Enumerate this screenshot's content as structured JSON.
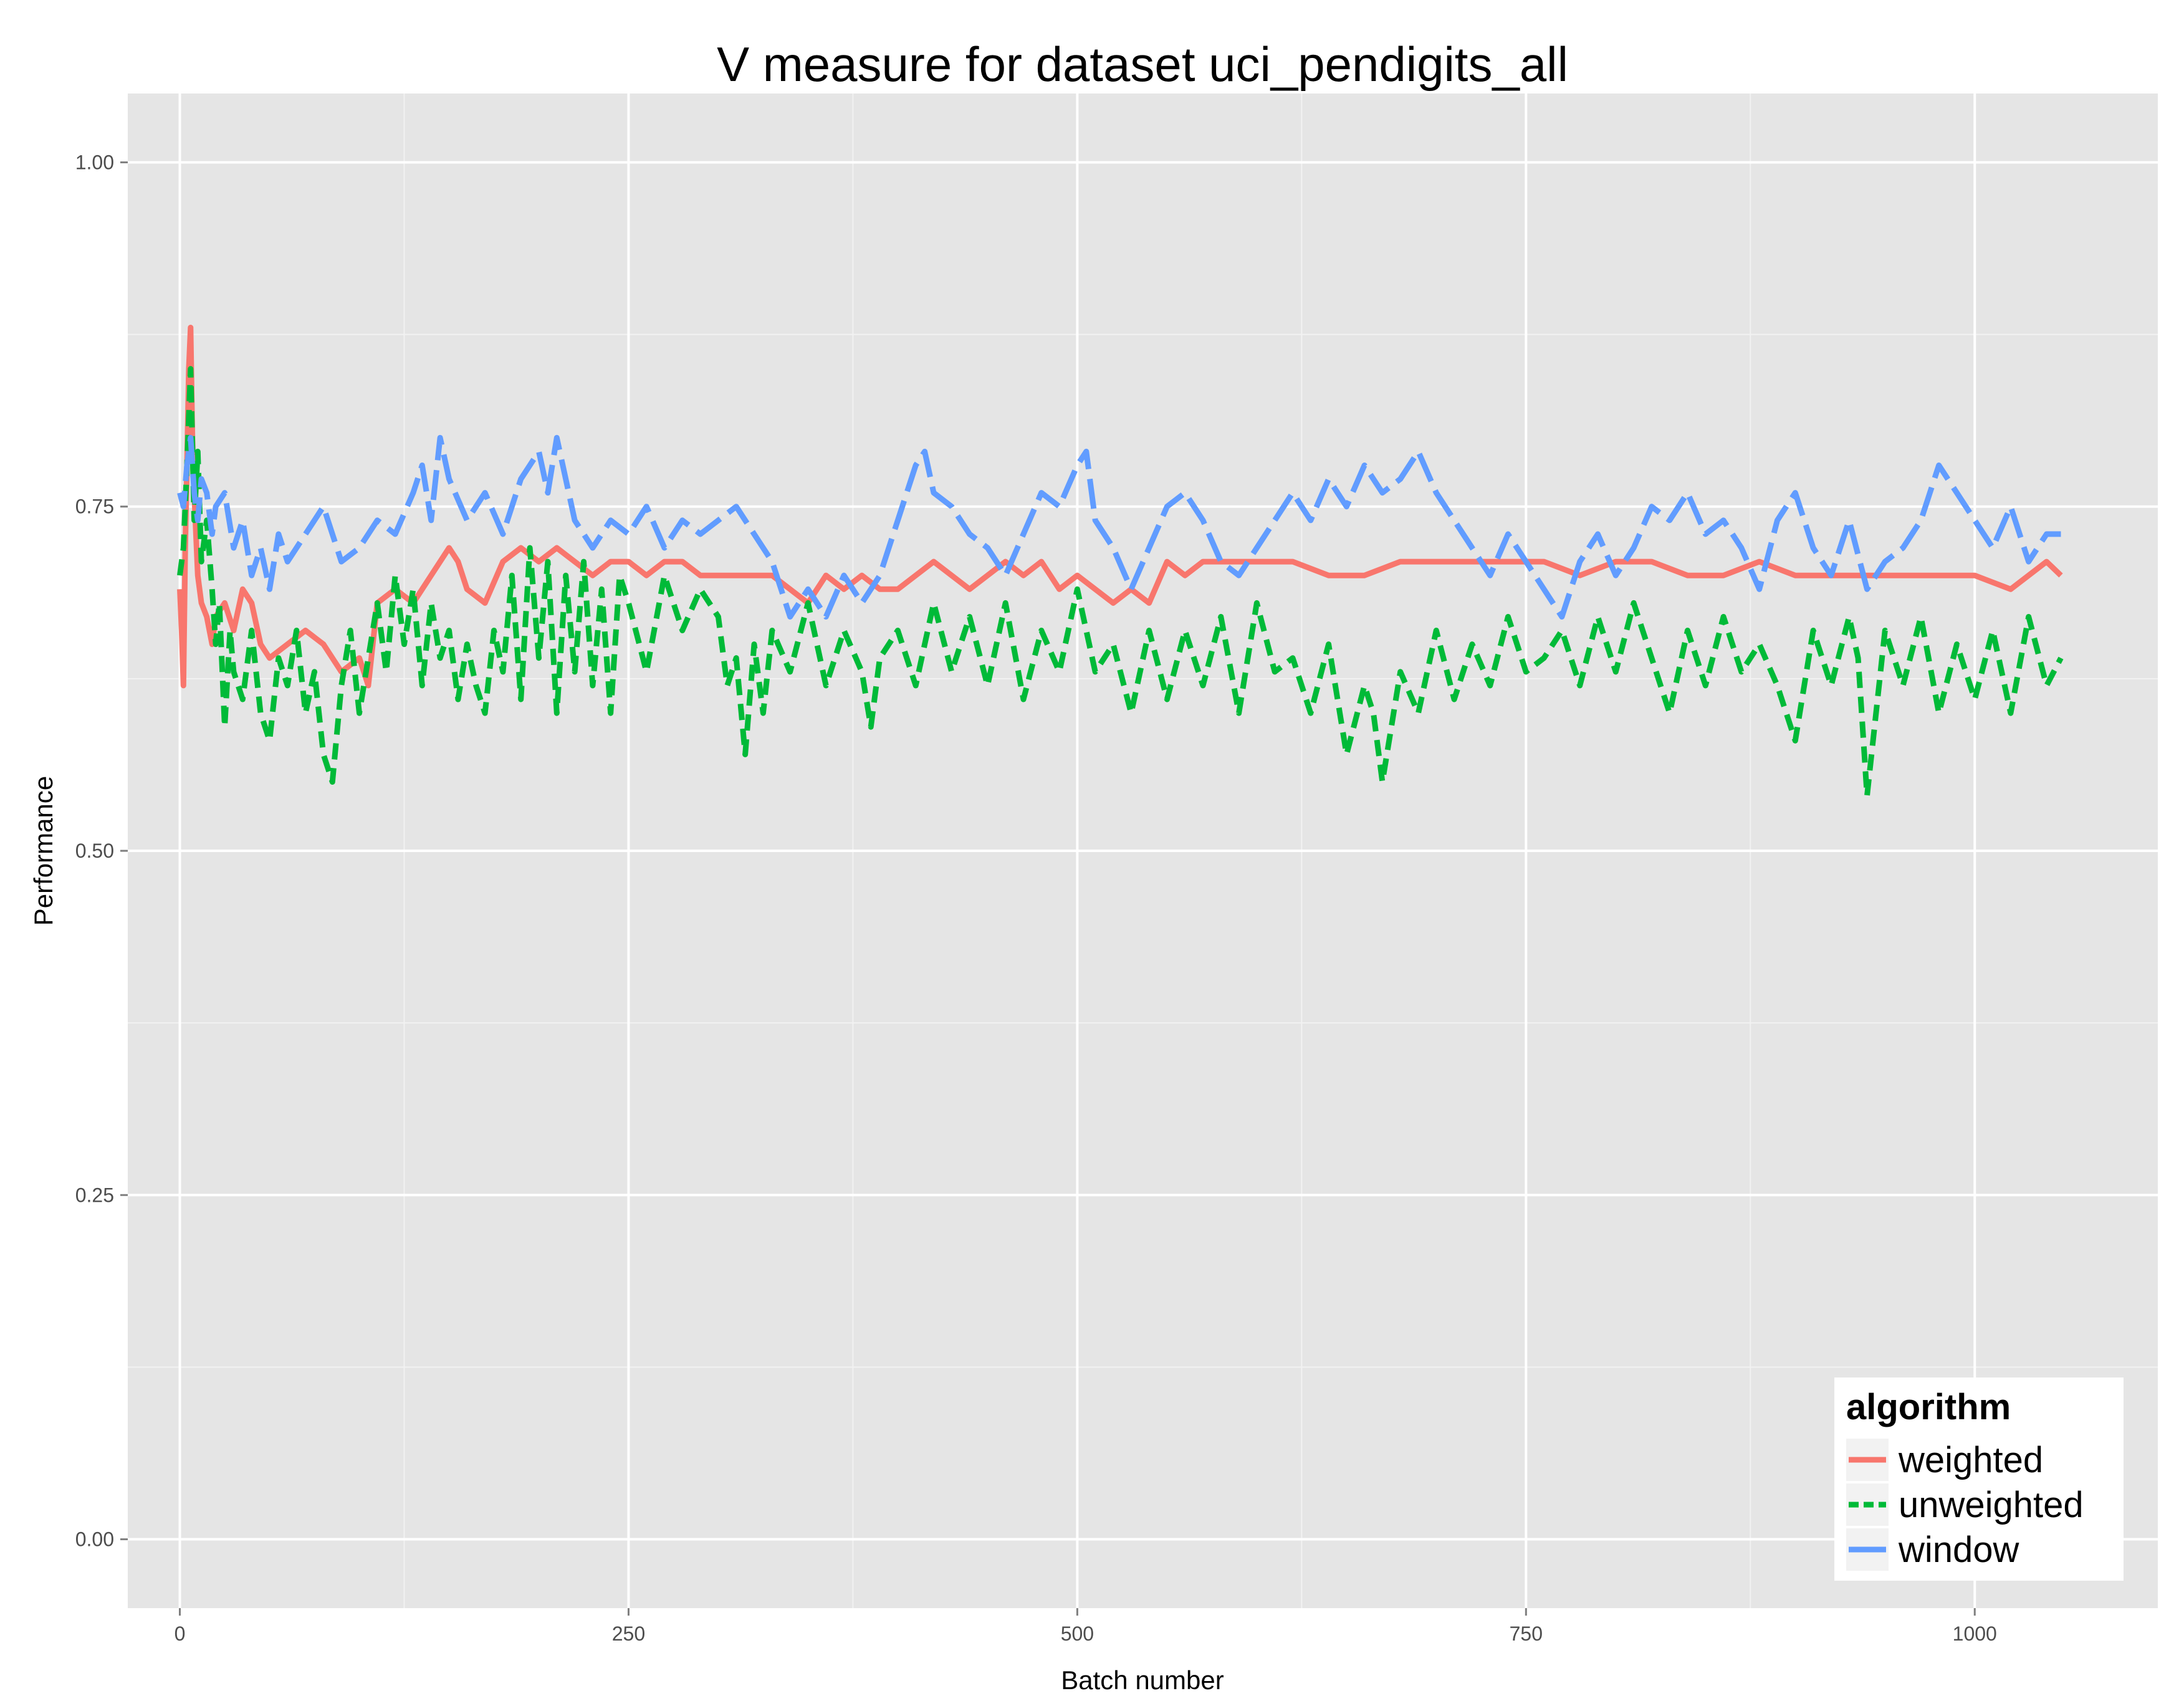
{
  "chart_data": {
    "type": "line",
    "title": "V measure for dataset uci_pendigits_all",
    "xlabel": "Batch number",
    "ylabel": "Performance",
    "xlim": [
      -29,
      1102
    ],
    "ylim": [
      -0.05,
      1.05
    ],
    "x_ticks": [
      0,
      250,
      500,
      750,
      1000
    ],
    "x_tick_labels": [
      "0",
      "250",
      "500",
      "750",
      "1000"
    ],
    "y_ticks": [
      0,
      0.25,
      0.5,
      0.75,
      1
    ],
    "y_tick_labels": [
      "0.00",
      "0.25",
      "0.50",
      "0.75",
      "1.00"
    ],
    "grid": true,
    "legend": {
      "title": "algorithm",
      "position": "bottom-right",
      "entries": [
        "weighted",
        "unweighted",
        "window"
      ]
    },
    "colors": {
      "weighted": "#F8766D",
      "unweighted": "#00BA38",
      "window": "#619CFF",
      "panel": "#E5E5E5",
      "grid": "#FFFFFF"
    },
    "series": [
      {
        "name": "weighted",
        "dash": "solid",
        "x": [
          0,
          1,
          2,
          3,
          4,
          5,
          6,
          7,
          8,
          9,
          10,
          12,
          15,
          18,
          20,
          25,
          30,
          35,
          40,
          45,
          50,
          60,
          70,
          80,
          90,
          100,
          105,
          110,
          120,
          130,
          140,
          150,
          155,
          160,
          170,
          180,
          190,
          200,
          210,
          220,
          230,
          240,
          250,
          260,
          270,
          280,
          290,
          300,
          310,
          320,
          330,
          340,
          350,
          360,
          370,
          380,
          390,
          400,
          410,
          420,
          430,
          440,
          450,
          460,
          470,
          480,
          490,
          500,
          510,
          520,
          530,
          540,
          550,
          560,
          570,
          580,
          590,
          600,
          620,
          640,
          660,
          680,
          700,
          720,
          740,
          760,
          780,
          800,
          820,
          840,
          860,
          880,
          900,
          920,
          940,
          960,
          980,
          1000,
          1020,
          1030,
          1040,
          1048
        ],
        "values": [
          0.69,
          0.66,
          0.62,
          0.72,
          0.78,
          0.85,
          0.88,
          0.8,
          0.76,
          0.73,
          0.7,
          0.68,
          0.67,
          0.65,
          0.67,
          0.68,
          0.66,
          0.69,
          0.68,
          0.65,
          0.64,
          0.65,
          0.66,
          0.65,
          0.63,
          0.64,
          0.62,
          0.68,
          0.69,
          0.68,
          0.7,
          0.72,
          0.71,
          0.69,
          0.68,
          0.71,
          0.72,
          0.71,
          0.72,
          0.71,
          0.7,
          0.71,
          0.71,
          0.7,
          0.71,
          0.71,
          0.7,
          0.7,
          0.7,
          0.7,
          0.7,
          0.69,
          0.68,
          0.7,
          0.69,
          0.7,
          0.69,
          0.69,
          0.7,
          0.71,
          0.7,
          0.69,
          0.7,
          0.71,
          0.7,
          0.71,
          0.69,
          0.7,
          0.69,
          0.68,
          0.69,
          0.68,
          0.71,
          0.7,
          0.71,
          0.71,
          0.71,
          0.71,
          0.71,
          0.7,
          0.7,
          0.71,
          0.71,
          0.71,
          0.71,
          0.71,
          0.7,
          0.71,
          0.71,
          0.7,
          0.7,
          0.71,
          0.7,
          0.7,
          0.7,
          0.7,
          0.7,
          0.7,
          0.69,
          0.7,
          0.71,
          0.7
        ]
      },
      {
        "name": "unweighted",
        "dash": "dashed",
        "x": [
          0,
          2,
          4,
          6,
          8,
          10,
          12,
          15,
          18,
          20,
          22,
          25,
          28,
          30,
          35,
          40,
          45,
          50,
          55,
          60,
          65,
          70,
          75,
          80,
          85,
          90,
          95,
          100,
          110,
          115,
          120,
          125,
          130,
          135,
          140,
          145,
          150,
          155,
          160,
          165,
          170,
          175,
          180,
          185,
          190,
          195,
          200,
          205,
          210,
          215,
          220,
          225,
          230,
          235,
          240,
          245,
          250,
          260,
          270,
          280,
          290,
          300,
          305,
          310,
          315,
          320,
          325,
          330,
          340,
          350,
          360,
          370,
          380,
          385,
          390,
          400,
          410,
          420,
          430,
          440,
          450,
          460,
          470,
          480,
          490,
          500,
          510,
          520,
          530,
          540,
          550,
          560,
          570,
          580,
          590,
          600,
          610,
          620,
          630,
          640,
          650,
          660,
          665,
          670,
          680,
          690,
          700,
          710,
          720,
          730,
          740,
          750,
          760,
          770,
          780,
          790,
          800,
          810,
          820,
          830,
          840,
          850,
          860,
          870,
          880,
          890,
          900,
          910,
          920,
          930,
          935,
          940,
          950,
          960,
          970,
          980,
          990,
          1000,
          1010,
          1020,
          1030,
          1040,
          1048
        ],
        "values": [
          0.7,
          0.72,
          0.78,
          0.85,
          0.74,
          0.79,
          0.71,
          0.74,
          0.69,
          0.65,
          0.68,
          0.59,
          0.66,
          0.63,
          0.61,
          0.66,
          0.6,
          0.58,
          0.64,
          0.62,
          0.66,
          0.6,
          0.63,
          0.57,
          0.55,
          0.62,
          0.66,
          0.6,
          0.68,
          0.63,
          0.7,
          0.65,
          0.69,
          0.62,
          0.68,
          0.64,
          0.66,
          0.61,
          0.65,
          0.62,
          0.6,
          0.66,
          0.63,
          0.7,
          0.61,
          0.72,
          0.64,
          0.71,
          0.6,
          0.7,
          0.63,
          0.71,
          0.62,
          0.69,
          0.6,
          0.7,
          0.68,
          0.63,
          0.7,
          0.66,
          0.69,
          0.67,
          0.62,
          0.64,
          0.57,
          0.65,
          0.6,
          0.66,
          0.63,
          0.68,
          0.62,
          0.66,
          0.63,
          0.59,
          0.64,
          0.66,
          0.62,
          0.68,
          0.63,
          0.67,
          0.62,
          0.68,
          0.61,
          0.66,
          0.63,
          0.69,
          0.63,
          0.65,
          0.6,
          0.66,
          0.61,
          0.66,
          0.62,
          0.67,
          0.6,
          0.68,
          0.63,
          0.64,
          0.6,
          0.65,
          0.57,
          0.62,
          0.6,
          0.55,
          0.63,
          0.6,
          0.66,
          0.61,
          0.65,
          0.62,
          0.67,
          0.63,
          0.64,
          0.66,
          0.62,
          0.67,
          0.63,
          0.68,
          0.64,
          0.6,
          0.66,
          0.62,
          0.67,
          0.63,
          0.65,
          0.62,
          0.58,
          0.66,
          0.62,
          0.67,
          0.64,
          0.54,
          0.66,
          0.62,
          0.67,
          0.6,
          0.65,
          0.61,
          0.66,
          0.6,
          0.67,
          0.62,
          0.64
        ]
      },
      {
        "name": "window",
        "dash": "longdash",
        "x": [
          0,
          2,
          4,
          6,
          8,
          10,
          12,
          15,
          18,
          20,
          25,
          30,
          35,
          40,
          45,
          50,
          55,
          60,
          70,
          80,
          90,
          100,
          110,
          120,
          130,
          135,
          140,
          145,
          150,
          160,
          170,
          180,
          190,
          200,
          205,
          210,
          215,
          220,
          230,
          240,
          250,
          260,
          270,
          280,
          290,
          300,
          310,
          320,
          330,
          340,
          350,
          360,
          370,
          380,
          390,
          400,
          410,
          415,
          420,
          430,
          440,
          450,
          460,
          470,
          480,
          490,
          500,
          505,
          510,
          520,
          530,
          540,
          550,
          560,
          570,
          580,
          590,
          600,
          610,
          620,
          630,
          640,
          650,
          660,
          670,
          680,
          690,
          700,
          710,
          720,
          730,
          740,
          750,
          760,
          770,
          780,
          790,
          800,
          810,
          820,
          830,
          840,
          850,
          860,
          870,
          880,
          890,
          900,
          910,
          920,
          930,
          940,
          950,
          960,
          970,
          980,
          990,
          1000,
          1010,
          1020,
          1030,
          1040,
          1048
        ],
        "values": [
          0.76,
          0.75,
          0.78,
          0.8,
          0.76,
          0.74,
          0.77,
          0.76,
          0.73,
          0.75,
          0.76,
          0.72,
          0.74,
          0.7,
          0.72,
          0.69,
          0.73,
          0.71,
          0.73,
          0.75,
          0.71,
          0.72,
          0.74,
          0.73,
          0.76,
          0.78,
          0.74,
          0.8,
          0.77,
          0.74,
          0.76,
          0.73,
          0.77,
          0.79,
          0.76,
          0.8,
          0.77,
          0.74,
          0.72,
          0.74,
          0.73,
          0.75,
          0.72,
          0.74,
          0.73,
          0.74,
          0.75,
          0.73,
          0.71,
          0.67,
          0.69,
          0.67,
          0.7,
          0.68,
          0.7,
          0.74,
          0.78,
          0.79,
          0.76,
          0.75,
          0.73,
          0.72,
          0.7,
          0.73,
          0.76,
          0.75,
          0.78,
          0.79,
          0.74,
          0.72,
          0.69,
          0.72,
          0.75,
          0.76,
          0.74,
          0.71,
          0.7,
          0.72,
          0.74,
          0.76,
          0.74,
          0.77,
          0.75,
          0.78,
          0.76,
          0.77,
          0.79,
          0.76,
          0.74,
          0.72,
          0.7,
          0.73,
          0.71,
          0.69,
          0.67,
          0.71,
          0.73,
          0.7,
          0.72,
          0.75,
          0.74,
          0.76,
          0.73,
          0.74,
          0.72,
          0.69,
          0.74,
          0.76,
          0.72,
          0.7,
          0.74,
          0.69,
          0.71,
          0.72,
          0.74,
          0.78,
          0.76,
          0.74,
          0.72,
          0.75,
          0.71,
          0.73,
          0.73
        ]
      }
    ]
  }
}
